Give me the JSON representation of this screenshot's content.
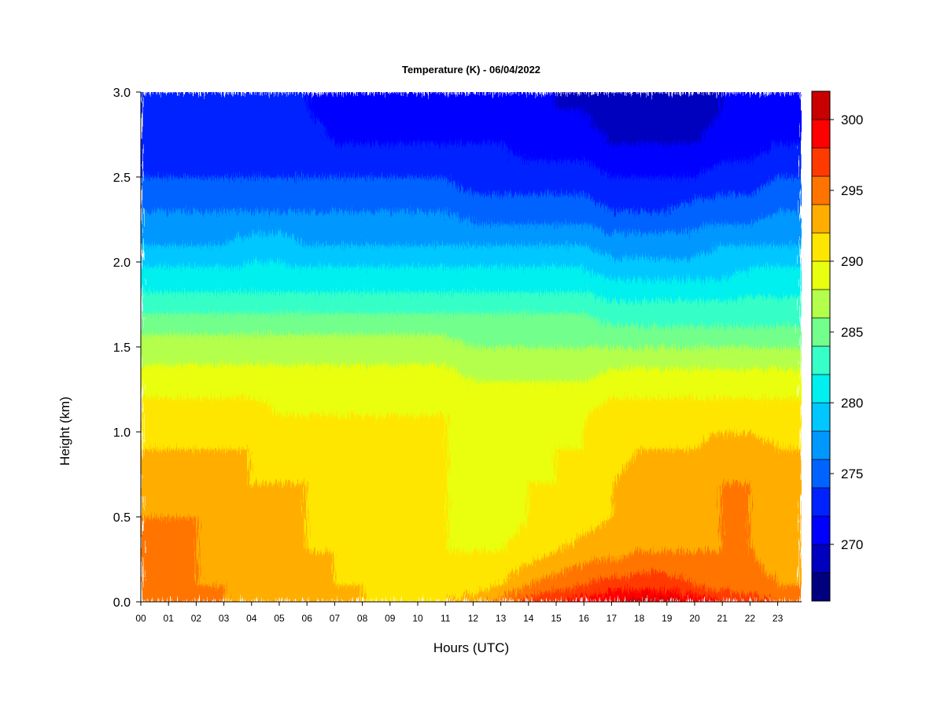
{
  "chart_data": {
    "type": "heatmap",
    "title": "Temperature (K) - 06/04/2022",
    "xlabel": "Hours (UTC)",
    "ylabel": "Height (km)",
    "x_ticks": [
      "00",
      "01",
      "02",
      "03",
      "04",
      "05",
      "06",
      "07",
      "08",
      "09",
      "10",
      "11",
      "12",
      "13",
      "14",
      "15",
      "16",
      "17",
      "18",
      "19",
      "20",
      "21",
      "22",
      "23"
    ],
    "y_ticks": [
      "0.0",
      "0.5",
      "1.0",
      "1.5",
      "2.0",
      "2.5",
      "3.0"
    ],
    "xlim": [
      0,
      23.85
    ],
    "ylim": [
      0,
      3.0
    ],
    "colorbar": {
      "min": 266,
      "max": 302,
      "levels": [
        266,
        268,
        270,
        272,
        274,
        276,
        278,
        280,
        282,
        284,
        286,
        288,
        290,
        292,
        294,
        296,
        298,
        300,
        302
      ],
      "colors": [
        "#00007F",
        "#0000BF",
        "#0000FF",
        "#0022FF",
        "#0063FF",
        "#0097FF",
        "#00C7FF",
        "#00EFEF",
        "#36FFC7",
        "#73FF8C",
        "#B3FF4C",
        "#E9FF10",
        "#FFE600",
        "#FFAE00",
        "#FF7400",
        "#FF3A00",
        "#FF0000",
        "#C80000",
        "#800000"
      ],
      "tick_labels": [
        "270",
        "275",
        "280",
        "285",
        "290",
        "295",
        "300"
      ],
      "tick_values": [
        270,
        275,
        280,
        285,
        290,
        295,
        300
      ]
    },
    "hours": [
      0,
      1,
      2,
      3,
      4,
      5,
      6,
      7,
      8,
      9,
      10,
      11,
      12,
      13,
      14,
      15,
      16,
      17,
      18,
      19,
      20,
      21,
      22,
      23,
      23.85
    ],
    "heights": [
      0.0,
      0.1,
      0.3,
      0.5,
      0.7,
      0.9,
      1.1,
      1.3,
      1.5,
      1.7,
      1.9,
      2.1,
      2.3,
      2.5,
      2.7,
      2.9,
      3.0
    ],
    "values": [
      [
        296,
        295,
        294,
        294,
        293,
        292,
        291,
        289,
        287,
        284,
        281,
        278,
        276,
        274,
        273,
        272,
        272
      ],
      [
        296,
        295,
        294,
        294,
        293,
        292,
        291,
        289,
        287,
        284,
        281,
        278,
        276,
        274,
        273,
        272,
        272
      ],
      [
        295,
        294,
        294,
        294,
        293,
        292,
        291,
        289,
        287,
        284,
        281,
        278,
        276,
        274,
        273,
        272,
        272
      ],
      [
        294,
        294,
        293,
        293,
        293,
        292,
        291,
        289,
        287,
        284,
        281,
        278,
        276,
        274,
        273,
        272,
        272
      ],
      [
        293,
        293,
        293,
        293,
        292,
        292,
        291,
        289,
        287,
        284,
        281,
        279,
        276,
        274,
        273,
        272,
        272
      ],
      [
        293,
        292,
        292,
        292,
        292,
        291,
        290,
        289,
        287,
        284,
        281,
        279,
        276,
        274,
        273,
        272,
        272
      ],
      [
        293,
        292,
        292,
        292,
        292,
        291,
        290,
        289,
        287,
        284,
        281,
        278,
        276,
        274,
        273,
        272,
        272
      ],
      [
        293,
        292,
        292,
        291,
        291,
        291,
        290,
        289,
        287,
        284,
        281,
        278,
        276,
        274,
        272,
        271,
        271
      ],
      [
        292,
        292,
        291,
        291,
        291,
        291,
        290,
        289,
        287,
        284,
        281,
        278,
        276,
        274,
        272,
        271,
        271
      ],
      [
        292,
        291,
        291,
        291,
        291,
        291,
        290,
        289,
        287,
        284,
        281,
        278,
        276,
        274,
        272,
        271,
        271
      ],
      [
        292,
        291,
        291,
        290,
        290,
        290,
        290,
        289,
        287,
        284,
        281,
        278,
        276,
        274,
        272,
        271,
        271
      ],
      [
        292,
        291,
        290,
        290,
        290,
        290,
        290,
        289,
        287,
        284,
        281,
        278,
        276,
        274,
        272,
        271,
        271
      ],
      [
        293,
        291,
        290,
        289,
        289,
        289,
        289,
        288,
        286,
        284,
        281,
        278,
        275,
        273,
        272,
        271,
        270
      ],
      [
        295,
        292,
        290,
        289,
        289,
        289,
        289,
        288,
        286,
        284,
        281,
        278,
        275,
        273,
        272,
        271,
        270
      ],
      [
        297,
        294,
        291,
        290,
        290,
        289,
        289,
        288,
        286,
        284,
        281,
        278,
        275,
        273,
        271,
        270,
        270
      ],
      [
        298,
        295,
        292,
        290,
        290,
        290,
        289,
        288,
        286,
        284,
        281,
        278,
        275,
        273,
        271,
        270,
        270
      ],
      [
        299,
        296,
        293,
        291,
        291,
        290,
        290,
        288,
        286,
        284,
        281,
        278,
        275,
        273,
        271,
        270,
        269
      ],
      [
        300,
        297,
        293,
        292,
        292,
        291,
        291,
        289,
        286,
        283,
        280,
        277,
        274,
        272,
        270,
        269,
        268
      ],
      [
        301,
        297,
        294,
        293,
        293,
        292,
        291,
        289,
        286,
        283,
        280,
        277,
        274,
        272,
        270,
        269,
        268
      ],
      [
        301,
        297,
        294,
        293,
        293,
        292,
        291,
        289,
        286,
        283,
        280,
        277,
        274,
        272,
        270,
        269,
        269
      ],
      [
        300,
        296,
        294,
        293,
        293,
        292,
        291,
        289,
        286,
        283,
        280,
        277,
        275,
        272,
        270,
        269,
        269
      ],
      [
        298,
        295,
        294,
        294,
        294,
        293,
        291,
        289,
        286,
        283,
        280,
        278,
        275,
        273,
        271,
        270,
        270
      ],
      [
        297,
        295,
        294,
        294,
        294,
        293,
        291,
        289,
        286,
        283,
        281,
        278,
        275,
        273,
        271,
        270,
        270
      ],
      [
        296,
        294,
        293,
        293,
        293,
        292,
        291,
        289,
        286,
        283,
        281,
        278,
        276,
        274,
        272,
        271,
        271
      ],
      [
        296,
        294,
        293,
        293,
        293,
        292,
        291,
        289,
        286,
        283,
        281,
        278,
        276,
        274,
        272,
        271,
        271
      ]
    ]
  }
}
